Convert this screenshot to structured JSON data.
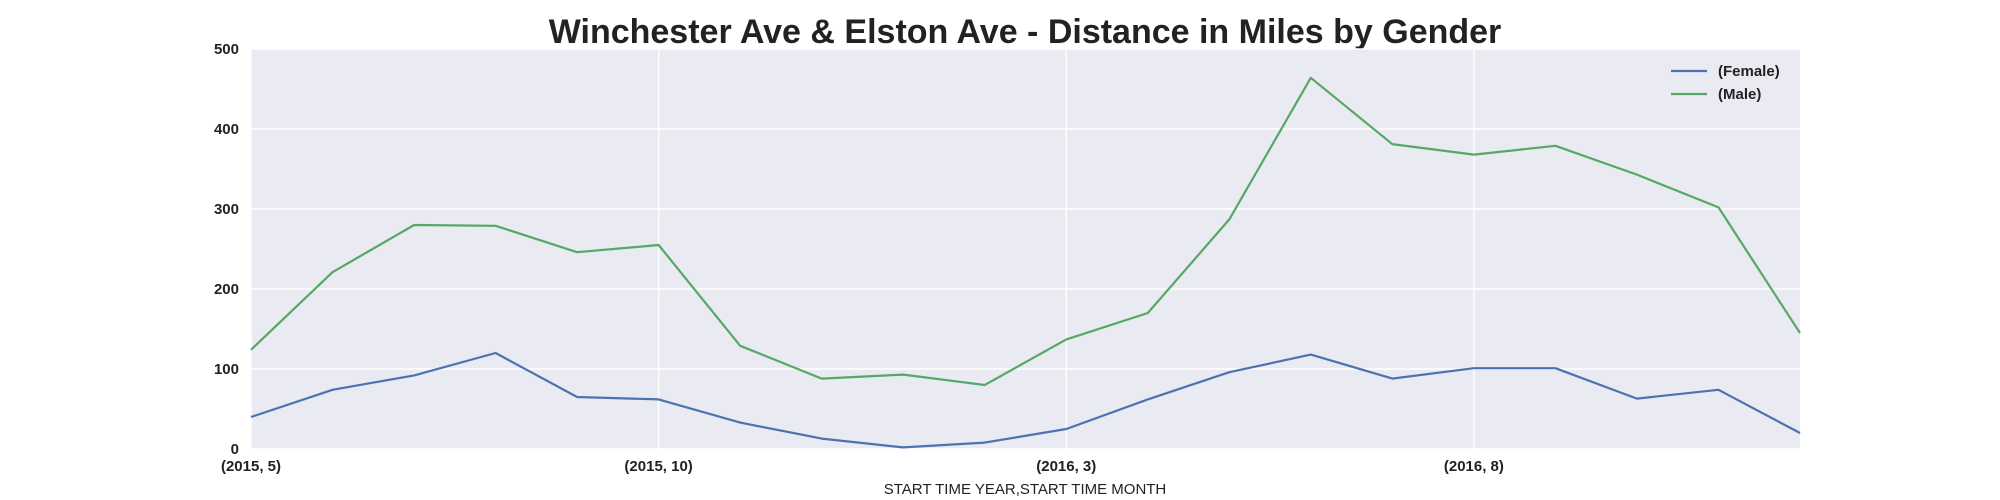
{
  "chart_data": {
    "type": "line",
    "title": "Winchester Ave & Elston Ave - Distance in Miles by Gender",
    "xlabel": "START TIME YEAR,START TIME MONTH",
    "ylabel": "",
    "x": [
      "(2015, 5)",
      "(2015, 6)",
      "(2015, 7)",
      "(2015, 8)",
      "(2015, 9)",
      "(2015, 10)",
      "(2015, 11)",
      "(2015, 12)",
      "(2016, 1)",
      "(2016, 2)",
      "(2016, 3)",
      "(2016, 4)",
      "(2016, 5)",
      "(2016, 6)",
      "(2016, 7)",
      "(2016, 8)",
      "(2016, 9)",
      "(2016, 10)",
      "(2016, 11)",
      "(2016, 12)"
    ],
    "x_tick_labels": [
      "(2015, 5)",
      "(2015, 10)",
      "(2016, 3)",
      "(2016, 8)"
    ],
    "ylim": [
      0,
      500
    ],
    "y_ticks": [
      0,
      100,
      200,
      300,
      400,
      500
    ],
    "grid": true,
    "legend_position": "top-right",
    "series": [
      {
        "name": "(Female)",
        "color": "#4c72b0",
        "values": [
          40,
          74,
          92,
          120,
          65,
          62,
          33,
          13,
          2,
          8,
          25,
          62,
          96,
          118,
          88,
          101,
          101,
          63,
          74,
          20
        ]
      },
      {
        "name": "(Male)",
        "color": "#55a868",
        "values": [
          124,
          221,
          280,
          279,
          246,
          255,
          129,
          88,
          93,
          80,
          137,
          170,
          287,
          464,
          381,
          368,
          379,
          343,
          302,
          145
        ]
      }
    ]
  }
}
